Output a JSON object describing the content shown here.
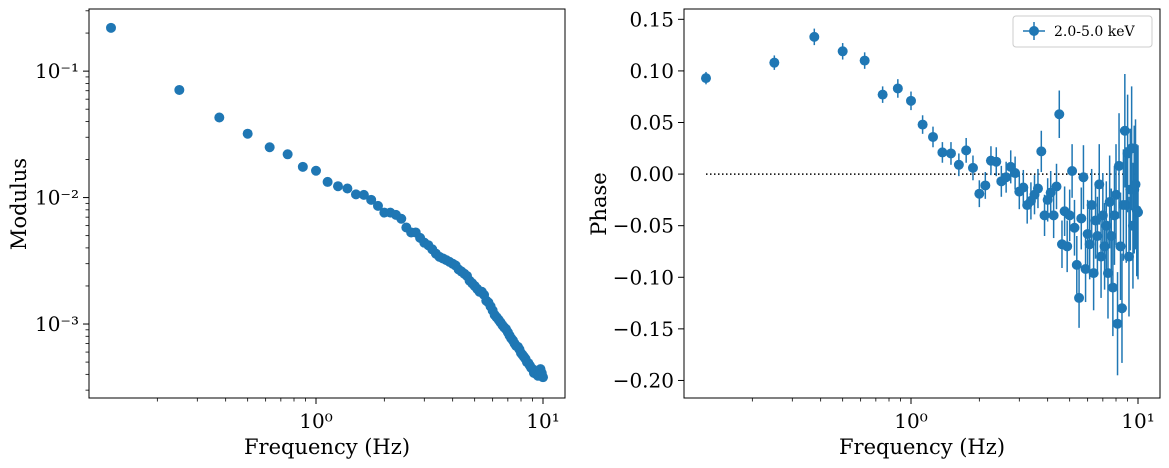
{
  "chart_data": [
    {
      "type": "scatter",
      "xlabel": "Frequency (Hz)",
      "ylabel": "Modulus",
      "xscale": "log",
      "yscale": "log",
      "xlim": [
        0.1,
        12.5
      ],
      "ylim": [
        0.00026,
        0.31
      ],
      "x_ticks": [
        {
          "value": 1,
          "label": "10⁰"
        },
        {
          "value": 10,
          "label": "10¹"
        }
      ],
      "y_ticks": [
        {
          "value": 0.001,
          "label": "10⁻³"
        },
        {
          "value": 0.01,
          "label": "10⁻²"
        },
        {
          "value": 0.1,
          "label": "10⁻¹"
        }
      ],
      "color": "#1f77b4",
      "series": [
        {
          "x": [
            0.125,
            0.25,
            0.375,
            0.5,
            0.625,
            0.75,
            0.875,
            1.0,
            1.125,
            1.25,
            1.375,
            1.5,
            1.625,
            1.75,
            1.875,
            2.0,
            2.125,
            2.25,
            2.375,
            2.5,
            2.625,
            2.75,
            2.875,
            3.0,
            3.125,
            3.25,
            3.375,
            3.5,
            3.625,
            3.75,
            3.875,
            4.0,
            4.125,
            4.25,
            4.375,
            4.5,
            4.625,
            4.75,
            4.875,
            5.0,
            5.125,
            5.25,
            5.375,
            5.5,
            5.625,
            5.75,
            5.875,
            6.0,
            6.125,
            6.25,
            6.375,
            6.5,
            6.625,
            6.75,
            6.875,
            7.0,
            7.125,
            7.25,
            7.375,
            7.5,
            7.625,
            7.75,
            7.875,
            8.0,
            8.125,
            8.25,
            8.375,
            8.5,
            8.625,
            8.75,
            8.875,
            9.0,
            9.125,
            9.25,
            9.375,
            9.5,
            9.625,
            9.75,
            9.875,
            10.0
          ],
          "y": [
            0.22,
            0.071,
            0.043,
            0.032,
            0.025,
            0.022,
            0.0175,
            0.0163,
            0.0133,
            0.0123,
            0.0118,
            0.0106,
            0.0105,
            0.0096,
            0.0086,
            0.0076,
            0.0076,
            0.0073,
            0.0068,
            0.0058,
            0.0053,
            0.0053,
            0.0048,
            0.0044,
            0.0042,
            0.0039,
            0.0036,
            0.0034,
            0.0033,
            0.0032,
            0.0031,
            0.003,
            0.0029,
            0.0027,
            0.0026,
            0.0025,
            0.0024,
            0.0022,
            0.0021,
            0.002,
            0.0019,
            0.0018,
            0.0018,
            0.0017,
            0.00153,
            0.00148,
            0.00138,
            0.00128,
            0.00118,
            0.00113,
            0.00108,
            0.00103,
            0.00098,
            0.00094,
            0.00091,
            0.00086,
            0.00081,
            0.00077,
            0.00074,
            0.0007,
            0.00067,
            0.00066,
            0.00063,
            0.00059,
            0.00057,
            0.00055,
            0.00053,
            0.0005,
            0.00049,
            0.00047,
            0.00045,
            0.00044,
            0.00041,
            0.00042,
            0.0004,
            0.00039,
            0.0004,
            0.00044,
            0.00041,
            0.00038
          ]
        }
      ]
    },
    {
      "type": "scatter",
      "xlabel": "Frequency (Hz)",
      "ylabel": "Phase",
      "xscale": "log",
      "yscale": "linear",
      "xlim": [
        0.1,
        12.5
      ],
      "ylim": [
        -0.217,
        0.16
      ],
      "x_ticks": [
        {
          "value": 1,
          "label": "10⁰"
        },
        {
          "value": 10,
          "label": "10¹"
        }
      ],
      "y_ticks": [
        {
          "value": -0.2,
          "label": "−0.20"
        },
        {
          "value": -0.15,
          "label": "−0.15"
        },
        {
          "value": -0.1,
          "label": "−0.10"
        },
        {
          "value": -0.05,
          "label": "−0.05"
        },
        {
          "value": 0.0,
          "label": "0.00"
        },
        {
          "value": 0.05,
          "label": "0.05"
        },
        {
          "value": 0.1,
          "label": "0.10"
        },
        {
          "value": 0.15,
          "label": "0.15"
        }
      ],
      "legend": {
        "position": "top-right",
        "label": "2.0-5.0 keV"
      },
      "reference_line": {
        "y": 0.0,
        "x_range": [
          0.125,
          10.0
        ],
        "style": "dotted"
      },
      "color": "#1f77b4",
      "series": [
        {
          "name": "2.0-5.0 keV",
          "x": [
            0.125,
            0.25,
            0.375,
            0.5,
            0.625,
            0.75,
            0.875,
            1.0,
            1.125,
            1.25,
            1.375,
            1.5,
            1.625,
            1.75,
            1.875,
            2.0,
            2.125,
            2.25,
            2.375,
            2.5,
            2.625,
            2.75,
            2.875,
            3.0,
            3.125,
            3.25,
            3.375,
            3.5,
            3.625,
            3.75,
            3.875,
            4.0,
            4.125,
            4.25,
            4.375,
            4.5,
            4.625,
            4.75,
            4.875,
            5.0,
            5.125,
            5.25,
            5.375,
            5.5,
            5.625,
            5.75,
            5.875,
            6.0,
            6.125,
            6.25,
            6.375,
            6.5,
            6.625,
            6.75,
            6.875,
            7.0,
            7.125,
            7.25,
            7.375,
            7.5,
            7.625,
            7.75,
            7.875,
            8.0,
            8.125,
            8.25,
            8.375,
            8.5,
            8.625,
            8.75,
            8.875,
            9.0,
            9.125,
            9.25,
            9.375,
            9.5,
            9.625,
            9.75,
            9.875,
            10.0
          ],
          "y": [
            0.093,
            0.108,
            0.133,
            0.119,
            0.11,
            0.077,
            0.083,
            0.071,
            0.048,
            0.036,
            0.021,
            0.02,
            0.009,
            0.023,
            0.006,
            -0.019,
            -0.011,
            0.013,
            0.012,
            -0.007,
            -0.003,
            0.007,
            0.001,
            -0.017,
            -0.013,
            -0.03,
            -0.026,
            -0.02,
            -0.014,
            0.022,
            -0.04,
            -0.025,
            -0.018,
            -0.04,
            -0.012,
            0.058,
            -0.068,
            -0.036,
            -0.07,
            -0.04,
            0.003,
            -0.052,
            -0.088,
            -0.12,
            -0.043,
            -0.003,
            -0.092,
            -0.058,
            -0.068,
            -0.03,
            -0.096,
            -0.045,
            -0.06,
            -0.01,
            -0.08,
            -0.04,
            -0.07,
            -0.05,
            -0.096,
            -0.027,
            -0.06,
            -0.11,
            -0.04,
            -0.02,
            -0.145,
            0.008,
            -0.07,
            -0.13,
            -0.03,
            0.042,
            -0.03,
            0.02,
            -0.08,
            -0.015,
            0.025,
            -0.05,
            -0.015,
            -0.01,
            -0.035,
            -0.037
          ],
          "yerr": [
            0.006,
            0.007,
            0.008,
            0.008,
            0.008,
            0.008,
            0.009,
            0.009,
            0.009,
            0.01,
            0.01,
            0.011,
            0.011,
            0.012,
            0.012,
            0.013,
            0.013,
            0.014,
            0.014,
            0.015,
            0.015,
            0.016,
            0.016,
            0.017,
            0.017,
            0.018,
            0.018,
            0.019,
            0.019,
            0.02,
            0.02,
            0.021,
            0.021,
            0.022,
            0.022,
            0.023,
            0.023,
            0.024,
            0.025,
            0.025,
            0.026,
            0.027,
            0.028,
            0.029,
            0.03,
            0.031,
            0.032,
            0.033,
            0.034,
            0.035,
            0.036,
            0.037,
            0.038,
            0.039,
            0.04,
            0.041,
            0.042,
            0.043,
            0.044,
            0.045,
            0.046,
            0.047,
            0.048,
            0.049,
            0.05,
            0.051,
            0.052,
            0.053,
            0.054,
            0.055,
            0.056,
            0.057,
            0.058,
            0.059,
            0.06,
            0.061,
            0.062,
            0.063,
            0.064,
            0.065
          ]
        }
      ]
    }
  ]
}
